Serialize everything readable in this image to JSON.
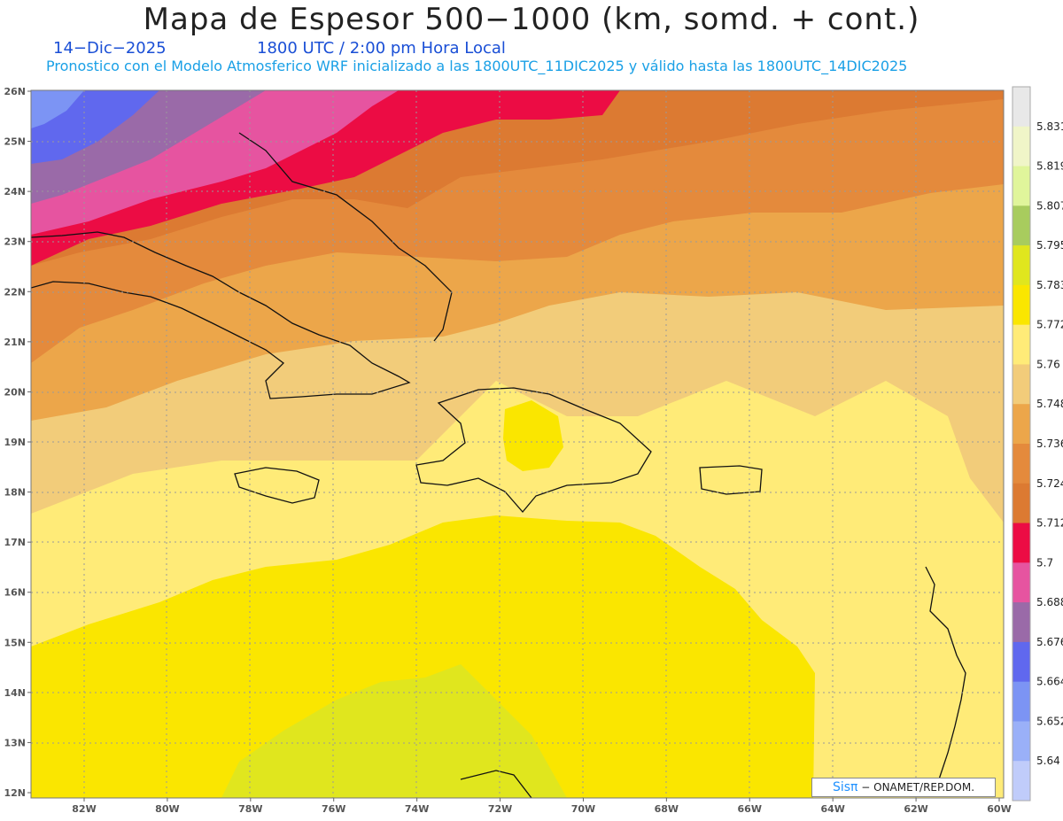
{
  "header": {
    "title": "Mapa de Espesor 500−1000 (km, somd. + cont.)",
    "date": "14−Dic−2025",
    "time": "1800 UTC / 2:00 pm Hora Local",
    "description": "Pronostico con el Modelo Atmosferico WRF inicializado a las 1800UTC_11DIC2025 y válido hasta las  1800UTC_14DIC2025"
  },
  "axes": {
    "lat_labels": [
      "26N",
      "25N",
      "24N",
      "23N",
      "22N",
      "21N",
      "20N",
      "19N",
      "18N",
      "17N",
      "16N",
      "15N",
      "14N",
      "13N",
      "12N"
    ],
    "lon_labels": [
      "82W",
      "80W",
      "78W",
      "76W",
      "74W",
      "72W",
      "70W",
      "68W",
      "66W",
      "64W",
      "62W",
      "60W"
    ]
  },
  "colorbar": {
    "labels": [
      "5.831",
      "5.819",
      "5.807",
      "5.795",
      "5.783",
      "5.772",
      "5.76",
      "5.748",
      "5.736",
      "5.724",
      "5.712",
      "5.7",
      "5.688",
      "5.676",
      "5.664",
      "5.652",
      "5.64"
    ],
    "colors": [
      "#e8e8e8",
      "#f0f5c8",
      "#e0f59b",
      "#a8cc5e",
      "#e0e61e",
      "#fae600",
      "#ffeb78",
      "#f2cc7a",
      "#eca64a",
      "#e48a3c",
      "#dc7a32",
      "#ec0c44",
      "#e654a0",
      "#9a6aa8",
      "#6068ee",
      "#7c94f4",
      "#9ab0f8",
      "#c0ccfa"
    ]
  },
  "credit": {
    "logo": "Sisπ",
    "text": " − ONAMET/REP.DOM."
  }
}
